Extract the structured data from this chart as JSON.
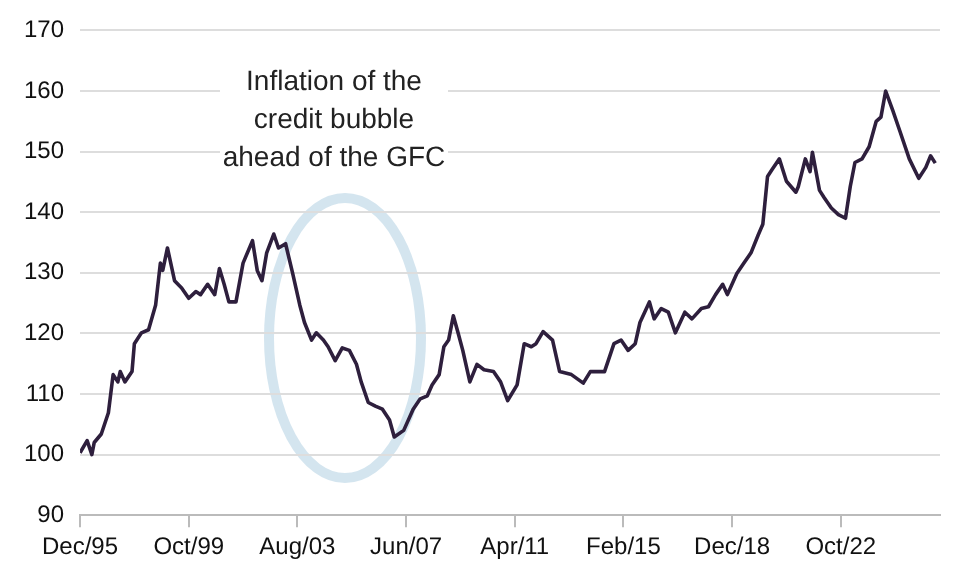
{
  "chart_data": {
    "type": "line",
    "annotations": [
      "Inflation of the credit bubble ahead of the GFC"
    ],
    "x": [
      "1995-12",
      "1996-03",
      "1996-05",
      "1996-06",
      "1996-09",
      "1996-12",
      "1997-02",
      "1997-04",
      "1997-05",
      "1997-07",
      "1997-10",
      "1997-11",
      "1998-02",
      "1998-05",
      "1998-08",
      "1998-10",
      "1998-11",
      "1999-01",
      "1999-04",
      "1999-07",
      "1999-10",
      "2000-01",
      "2000-03",
      "2000-06",
      "2000-09",
      "2000-11",
      "2001-01",
      "2001-03",
      "2001-06",
      "2001-09",
      "2002-01",
      "2002-03",
      "2002-05",
      "2002-07",
      "2002-10",
      "2002-12",
      "2003-03",
      "2003-06",
      "2003-09",
      "2003-11",
      "2004-02",
      "2004-04",
      "2004-07",
      "2004-09",
      "2004-12",
      "2005-03",
      "2005-06",
      "2005-09",
      "2005-11",
      "2006-02",
      "2006-05",
      "2006-08",
      "2006-11",
      "2007-01",
      "2007-05",
      "2007-09",
      "2007-12",
      "2008-03",
      "2008-05",
      "2008-08",
      "2008-10",
      "2008-12",
      "2009-02",
      "2009-04",
      "2009-06",
      "2009-09",
      "2009-12",
      "2010-03",
      "2010-07",
      "2010-10",
      "2011-01",
      "2011-05",
      "2011-08",
      "2011-11",
      "2012-01",
      "2012-04",
      "2012-08",
      "2012-11",
      "2013-04",
      "2013-09",
      "2013-12",
      "2014-06",
      "2014-10",
      "2015-01",
      "2015-04",
      "2015-07",
      "2015-09",
      "2016-01",
      "2016-03",
      "2016-06",
      "2016-09",
      "2016-12",
      "2017-04",
      "2017-07",
      "2017-11",
      "2018-02",
      "2018-05",
      "2018-08",
      "2018-10",
      "2019-02",
      "2019-05",
      "2019-08",
      "2019-11",
      "2020-01",
      "2020-03",
      "2020-05",
      "2020-08",
      "2020-11",
      "2021-03",
      "2021-04",
      "2021-07",
      "2021-09",
      "2021-10",
      "2022-01",
      "2022-03",
      "2022-06",
      "2022-09",
      "2022-12",
      "2023-02",
      "2023-04",
      "2023-07",
      "2023-10",
      "2024-01",
      "2024-03",
      "2024-05",
      "2024-08",
      "2024-11",
      "2025-03",
      "2025-07",
      "2025-10",
      "2025-12",
      "2026-02"
    ],
    "series": [
      {
        "color": "#2e1f3d",
        "values": [
          100.3,
          102.3,
          100,
          102,
          103.4,
          106.9,
          113.2,
          112,
          113.7,
          112,
          113.7,
          118.3,
          120.1,
          120.6,
          124.7,
          131.6,
          130.4,
          134.1,
          128.7,
          127.5,
          125.8,
          126.9,
          126.4,
          128.1,
          126.4,
          130.7,
          128.1,
          125.2,
          125.2,
          131.6,
          135.3,
          130.4,
          128.7,
          133.3,
          136.4,
          134.1,
          134.8,
          129.9,
          124.7,
          121.8,
          118.9,
          120.1,
          118.9,
          117.8,
          115.5,
          117.6,
          117.2,
          114.9,
          112,
          108.6,
          108,
          107.5,
          105.7,
          102.9,
          104,
          107.5,
          109.2,
          109.7,
          111.5,
          113.2,
          117.8,
          118.9,
          122.9,
          120.1,
          117.2,
          112,
          114.9,
          114,
          113.7,
          112,
          108.9,
          111.5,
          118.3,
          117.8,
          118.3,
          120.3,
          118.9,
          113.7,
          113.2,
          111.8,
          113.7,
          113.7,
          118.3,
          118.9,
          117.2,
          118.3,
          121.8,
          125.2,
          122.4,
          124.1,
          123.5,
          120.1,
          123.5,
          122.4,
          124.1,
          124.4,
          126.4,
          128.1,
          126.4,
          129.9,
          131.6,
          133.3,
          136.2,
          138,
          145.9,
          147.1,
          148.8,
          145.1,
          143.3,
          144.2,
          148.8,
          146.7,
          149.9,
          143.6,
          142.4,
          140.7,
          139.6,
          139,
          144.2,
          148.2,
          148.8,
          150.8,
          155,
          155.7,
          160,
          156.8,
          153.4,
          148.8,
          145.6,
          147.4,
          149.3,
          148.1
        ]
      }
    ],
    "xlim": [
      "1995-12",
      "2026-04"
    ],
    "xticks": [
      {
        "value": "1995-12",
        "label": "Dec/95"
      },
      {
        "value": "1999-10",
        "label": "Oct/99"
      },
      {
        "value": "2003-08",
        "label": "Aug/03"
      },
      {
        "value": "2007-06",
        "label": "Jun/07"
      },
      {
        "value": "2011-04",
        "label": "Apr/11"
      },
      {
        "value": "2015-02",
        "label": "Feb/15"
      },
      {
        "value": "2018-12",
        "label": "Dec/18"
      },
      {
        "value": "2022-10",
        "label": "Oct/22"
      }
    ],
    "ylim": [
      90,
      170
    ],
    "yticks": [
      90,
      100,
      110,
      120,
      130,
      140,
      150,
      160,
      170
    ],
    "grid": "y",
    "legend": false,
    "marker": "none",
    "line_style": "solid"
  }
}
